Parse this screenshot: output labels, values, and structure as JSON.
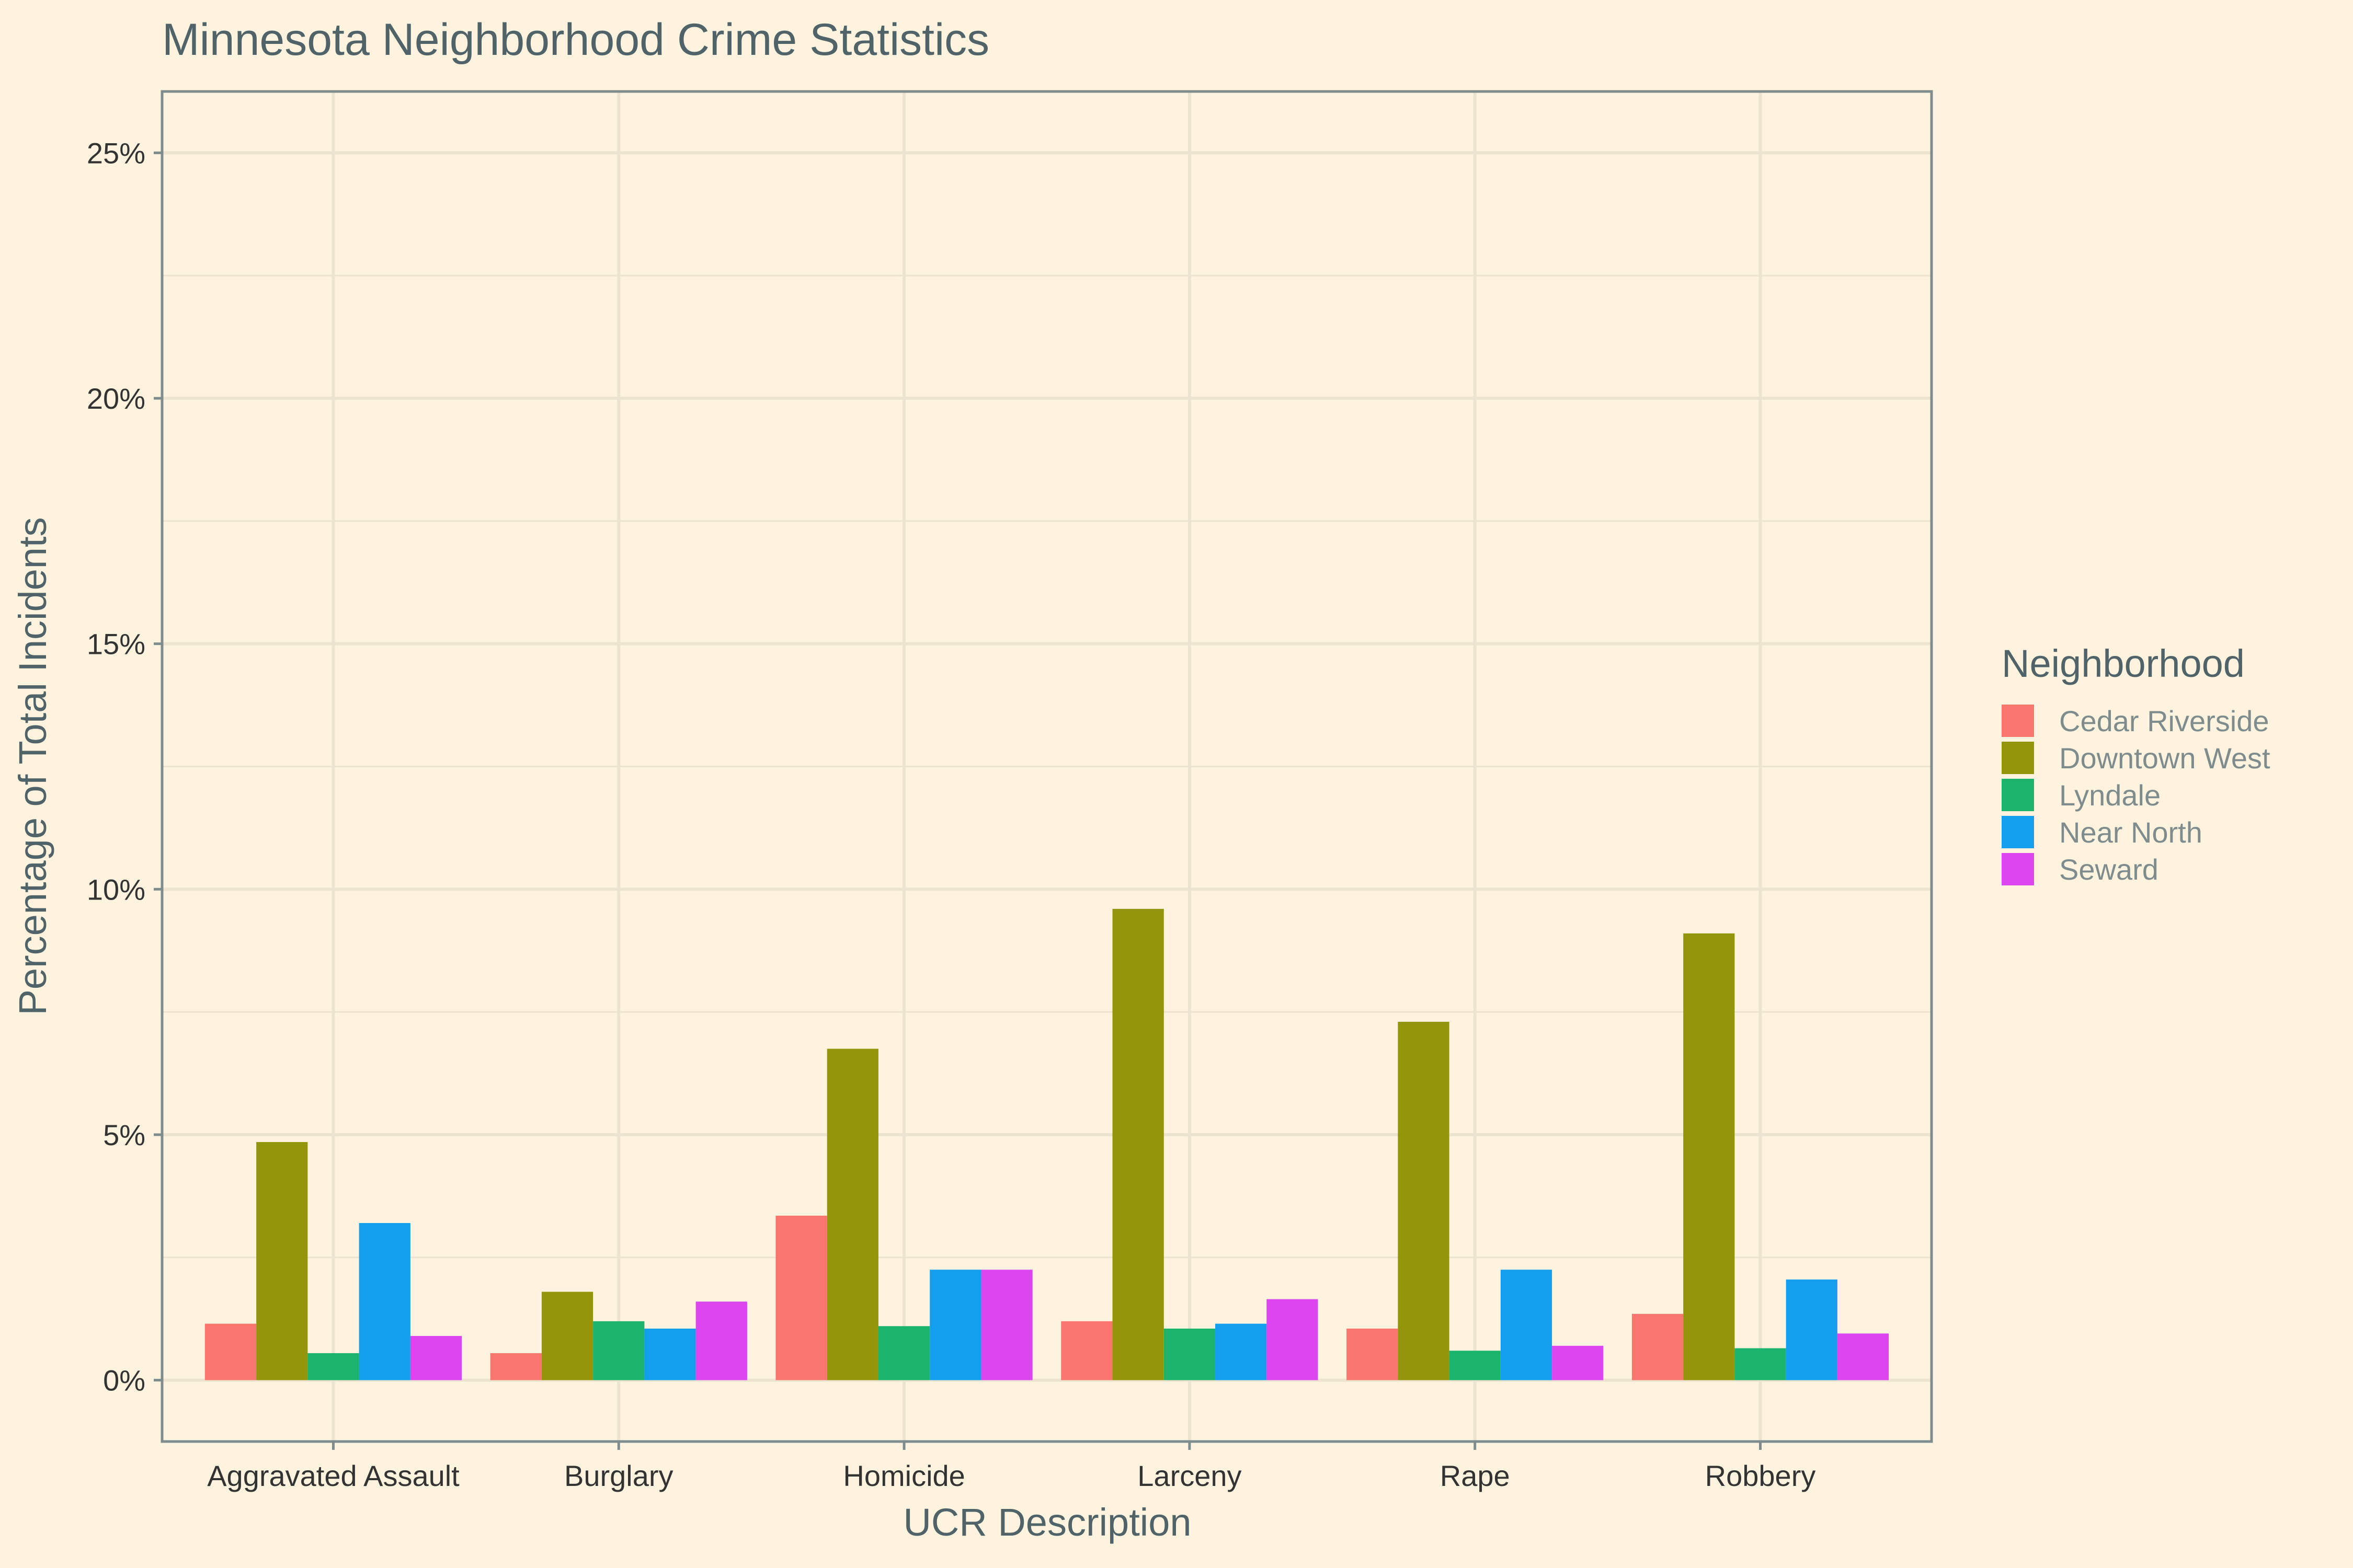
{
  "chart_data": {
    "type": "bar",
    "title": "Minnesota Neighborhood Crime Statistics",
    "xlabel": "UCR Description",
    "ylabel": "Percentage of Total Incidents",
    "categories": [
      "Aggravated Assault",
      "Burglary",
      "Homicide",
      "Larceny",
      "Rape",
      "Robbery"
    ],
    "ylim": [
      -1.25,
      26.25
    ],
    "yticks": [
      0,
      5,
      10,
      15,
      20,
      25
    ],
    "ytick_labels": [
      "0%",
      "5%",
      "10%",
      "15%",
      "20%",
      "25%"
    ],
    "grid": true,
    "legend": {
      "title": "Neighborhood",
      "position": "right"
    },
    "series": [
      {
        "name": "Cedar Riverside",
        "color": "#f8766d",
        "values": [
          1.15,
          0.55,
          3.35,
          1.2,
          1.05,
          1.35
        ]
      },
      {
        "name": "Downtown West",
        "color": "#93960a",
        "values": [
          4.85,
          1.8,
          6.75,
          9.6,
          7.3,
          9.1
        ]
      },
      {
        "name": "Lyndale",
        "color": "#1bb46c",
        "values": [
          0.55,
          1.2,
          1.1,
          1.05,
          0.6,
          0.65
        ]
      },
      {
        "name": "Near North",
        "color": "#149fee",
        "values": [
          3.2,
          1.05,
          2.25,
          1.15,
          2.25,
          2.05
        ]
      },
      {
        "name": "Seward",
        "color": "#db46f0",
        "values": [
          0.9,
          1.6,
          2.25,
          1.65,
          0.7,
          0.95
        ]
      }
    ]
  }
}
